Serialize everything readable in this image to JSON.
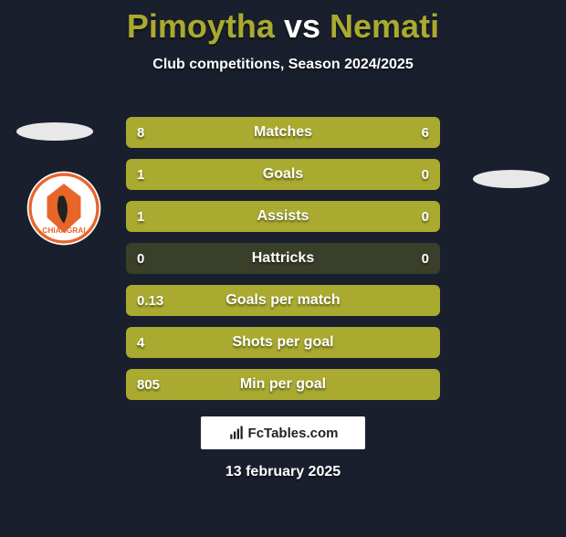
{
  "header": {
    "player1": "Pimoytha",
    "vs": "vs",
    "player2": "Nemati",
    "subtitle": "Club competitions, Season 2024/2025"
  },
  "colors": {
    "accent": "#a9aa2f",
    "bar_track": "#3a3f2a",
    "background": "#1a1f2e",
    "text": "#ffffff"
  },
  "rows": [
    {
      "label": "Matches",
      "left": "8",
      "right": "6",
      "left_pct": 57,
      "right_pct": 43
    },
    {
      "label": "Goals",
      "left": "1",
      "right": "0",
      "left_pct": 76,
      "right_pct": 24
    },
    {
      "label": "Assists",
      "left": "1",
      "right": "0",
      "left_pct": 76,
      "right_pct": 24
    },
    {
      "label": "Hattricks",
      "left": "0",
      "right": "0",
      "left_pct": 0,
      "right_pct": 0
    },
    {
      "label": "Goals per match",
      "left": "0.13",
      "right": "",
      "left_pct": 100,
      "right_pct": 0
    },
    {
      "label": "Shots per goal",
      "left": "4",
      "right": "",
      "left_pct": 100,
      "right_pct": 0
    },
    {
      "label": "Min per goal",
      "left": "805",
      "right": "",
      "left_pct": 100,
      "right_pct": 0
    }
  ],
  "brand": "FcTables.com",
  "date": "13 february 2025"
}
